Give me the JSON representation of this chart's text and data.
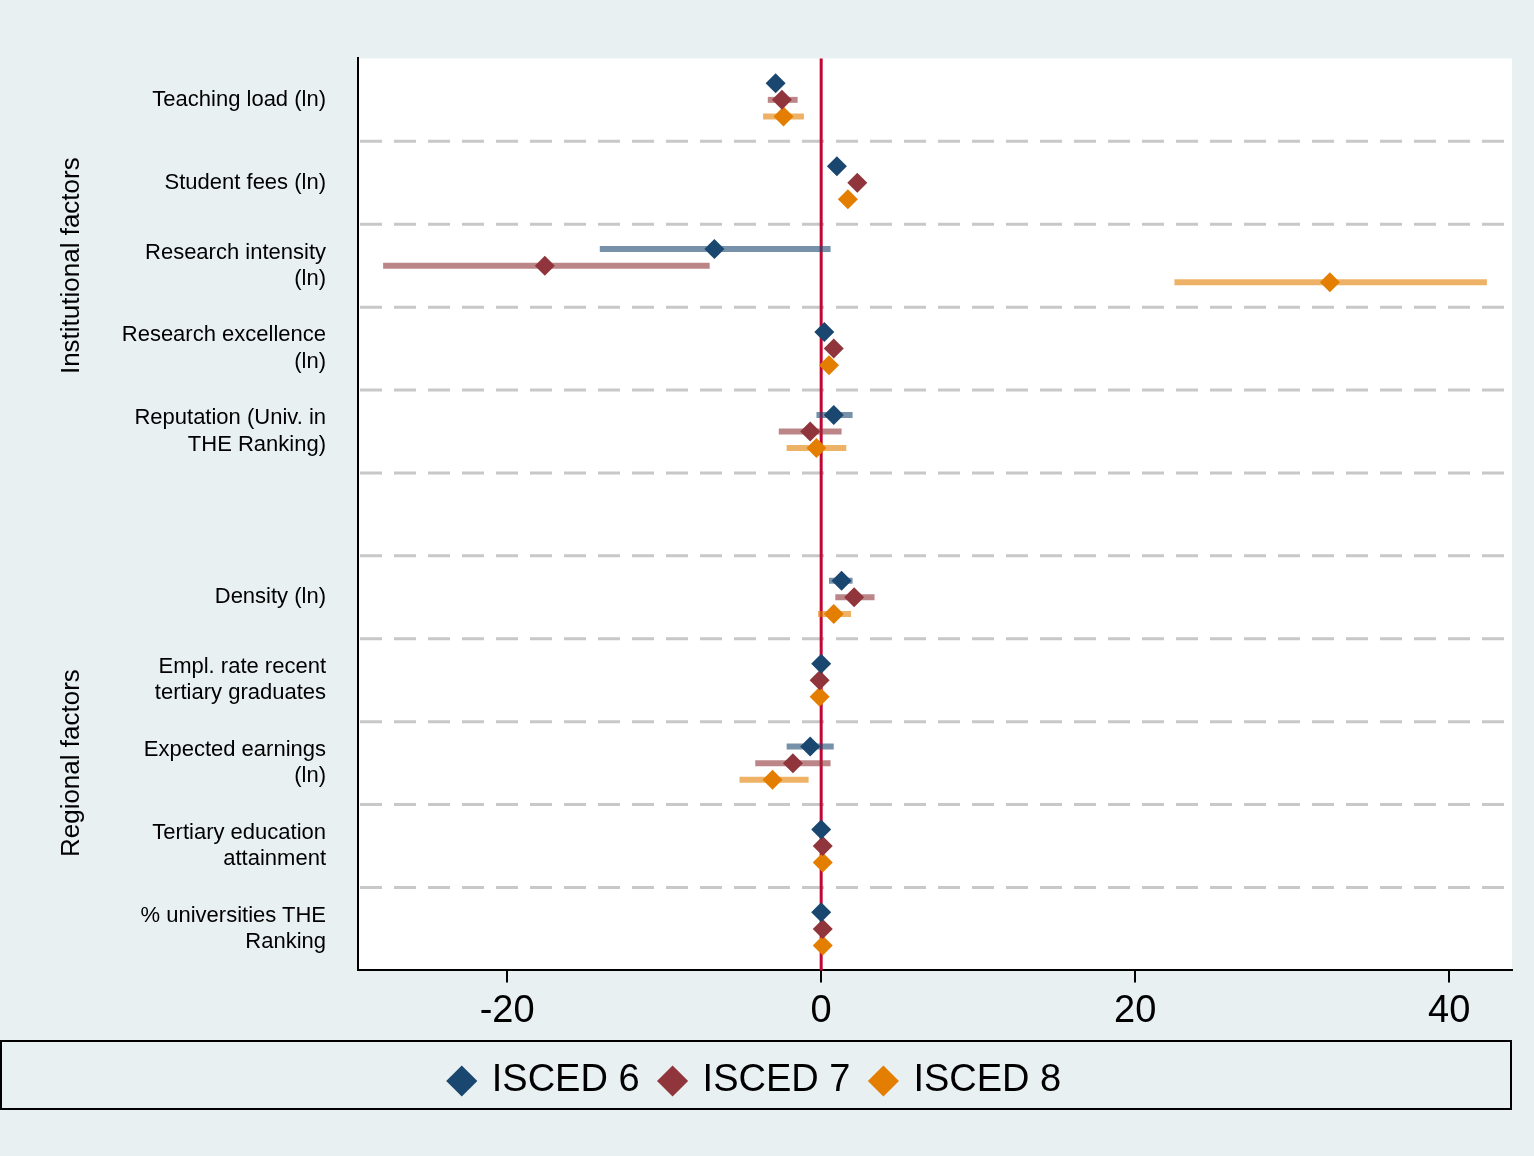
{
  "chart_data": {
    "type": "scatter",
    "orientation": "horizontal",
    "categories": [
      "Teaching load (ln)",
      "Student fees (ln)",
      "Research intensity (ln)",
      "Research excellence (ln)",
      "Reputation (Univ. in THE Ranking)",
      null,
      "Density (ln)",
      "Empl. rate recent tertiary graduates",
      "Expected earnings (ln)",
      "Tertiary education attainment",
      "% universities THE Ranking"
    ],
    "series": [
      {
        "name": "ISCED 6",
        "color": "#1a476f",
        "values": [
          -2.9,
          1.0,
          -6.8,
          0.2,
          0.8,
          null,
          1.3,
          0,
          -0.7,
          0,
          0
        ],
        "errors": [
          null,
          null,
          [
            -14.1,
            0.6
          ],
          null,
          [
            -0.3,
            2.0
          ],
          null,
          [
            0.5,
            2.0
          ],
          null,
          [
            -2.2,
            0.8
          ],
          null,
          null
        ]
      },
      {
        "name": "ISCED 7",
        "color": "#90353b",
        "values": [
          -2.5,
          2.3,
          -17.6,
          0.8,
          -0.7,
          null,
          2.1,
          -0.1,
          -1.8,
          0.1,
          0.1
        ],
        "errors": [
          [
            -3.4,
            -1.5
          ],
          null,
          [
            -27.9,
            -7.1
          ],
          null,
          [
            -2.7,
            1.3
          ],
          null,
          [
            0.9,
            3.4
          ],
          null,
          [
            -4.2,
            0.6
          ],
          null,
          null
        ]
      },
      {
        "name": "ISCED 8",
        "color": "#e37e00",
        "values": [
          -2.4,
          1.7,
          32.4,
          0.5,
          -0.3,
          null,
          0.8,
          -0.1,
          -3.1,
          0.1,
          0.1
        ],
        "errors": [
          [
            -3.7,
            -1.1
          ],
          null,
          [
            22.5,
            42.4
          ],
          null,
          [
            -2.2,
            1.6
          ],
          null,
          [
            -0.2,
            1.9
          ],
          null,
          [
            -5.2,
            -0.8
          ],
          null,
          null
        ]
      }
    ],
    "xlim": [
      -29.5,
      44
    ],
    "xticks": [
      -20,
      0,
      20,
      40
    ],
    "ref_lines": [
      {
        "axis": "x",
        "value": 0,
        "color": "#c10534"
      }
    ],
    "annotations": [
      "Institutional factors",
      "Regional factors"
    ],
    "grid": "y",
    "legend": "bottom",
    "marker": "diamond"
  }
}
